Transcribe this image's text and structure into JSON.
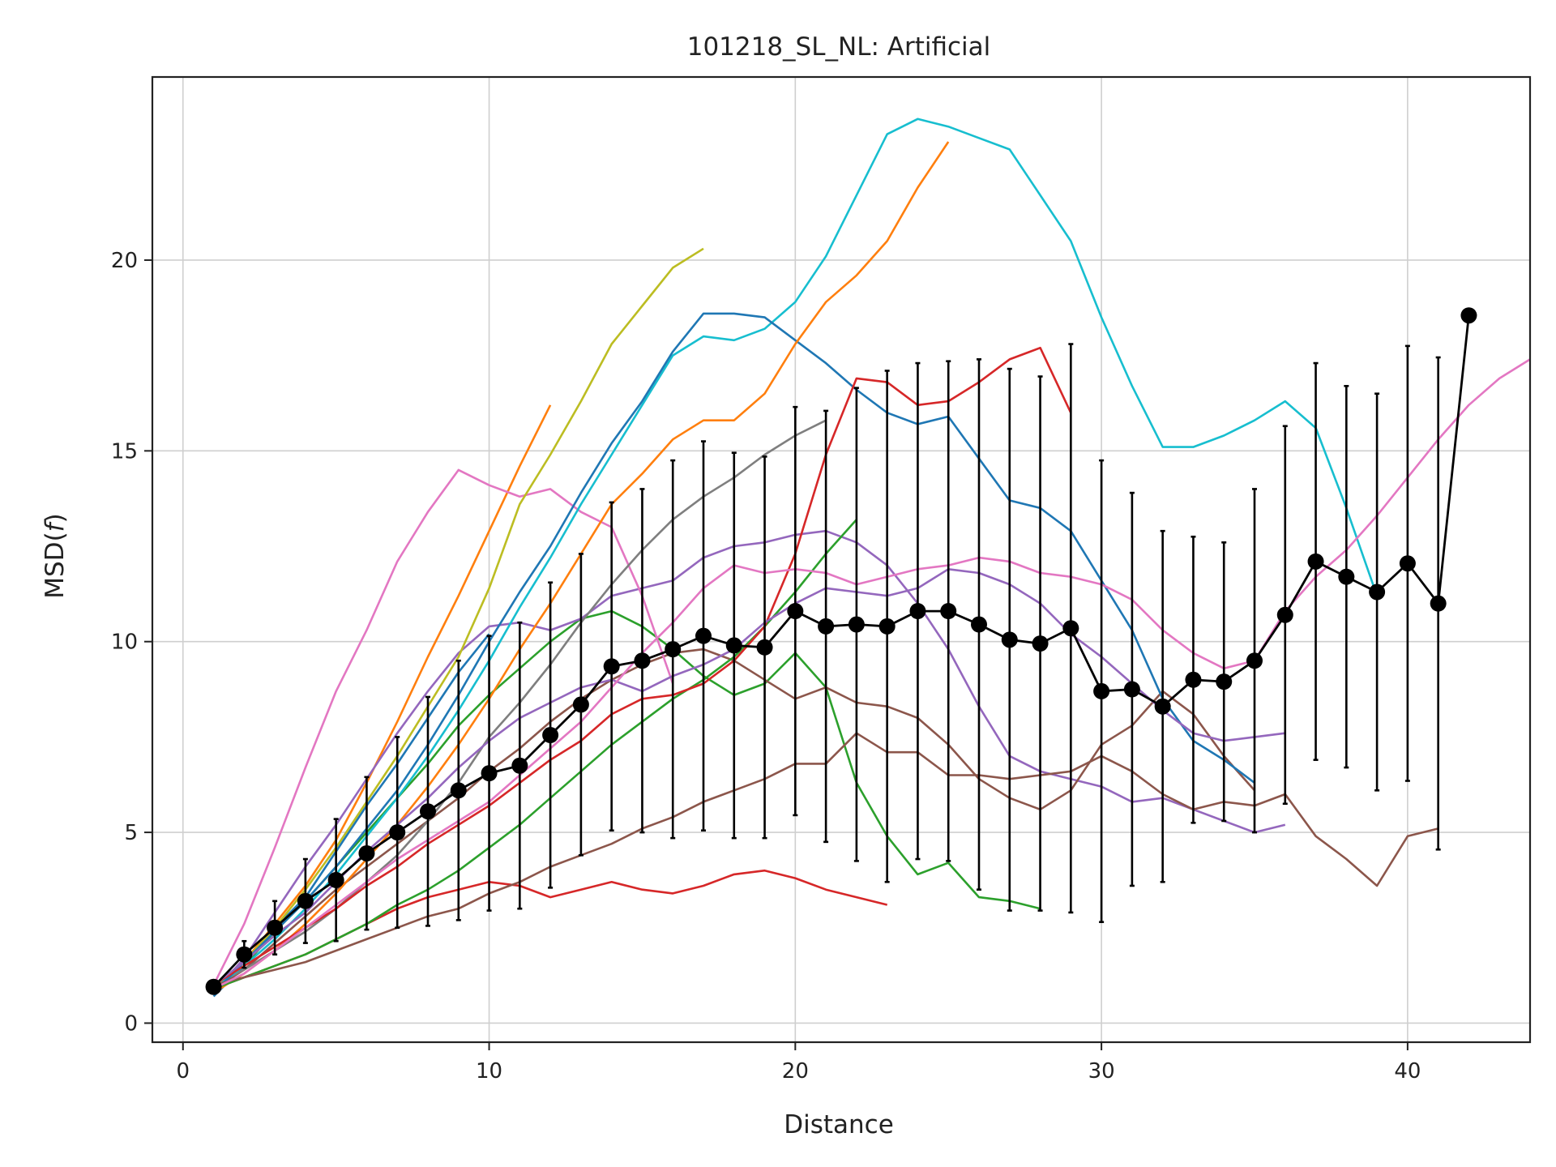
{
  "chart_data": {
    "type": "line",
    "title": "101218_SL_NL: Artificial",
    "xlabel": "Distance",
    "ylabel": "MSD(",
    "ylabel_italic": "f",
    "ylabel_close": ")",
    "xlim": [
      -1,
      44
    ],
    "ylim": [
      -0.5,
      24.8
    ],
    "xticks": [
      0,
      10,
      20,
      30,
      40
    ],
    "yticks": [
      0,
      5,
      10,
      15,
      20
    ],
    "grid": true,
    "palette": [
      "#1f77b4",
      "#ff7f0e",
      "#2ca02c",
      "#d62728",
      "#9467bd",
      "#8c564b",
      "#e377c2",
      "#7f7f7f",
      "#bcbd22",
      "#17becf"
    ],
    "mean": {
      "x": [
        1,
        2,
        3,
        4,
        5,
        6,
        7,
        8,
        9,
        10,
        11,
        12,
        13,
        14,
        15,
        16,
        17,
        18,
        19,
        20,
        21,
        22,
        23,
        24,
        25,
        26,
        27,
        28,
        29,
        30,
        31,
        32,
        33,
        34,
        35,
        36,
        37,
        38,
        39,
        40,
        41,
        42
      ],
      "y": [
        0.95,
        1.8,
        2.5,
        3.2,
        3.75,
        4.45,
        5.0,
        5.55,
        6.1,
        6.55,
        6.75,
        7.55,
        8.35,
        9.35,
        9.5,
        9.8,
        10.15,
        9.9,
        9.85,
        10.8,
        10.4,
        10.45,
        10.4,
        10.8,
        10.8,
        10.45,
        10.05,
        9.95,
        10.35,
        8.7,
        8.75,
        8.3,
        9.0,
        8.95,
        9.5,
        10.7,
        12.1,
        11.7,
        11.3,
        12.05,
        11.0,
        18.55
      ],
      "err": [
        0.0,
        0.35,
        0.7,
        1.1,
        1.6,
        2.0,
        2.5,
        3.0,
        3.4,
        3.6,
        3.75,
        4.0,
        3.95,
        4.3,
        4.5,
        4.95,
        5.1,
        5.05,
        5.0,
        5.35,
        5.65,
        6.2,
        6.7,
        6.5,
        6.55,
        6.95,
        7.1,
        7.0,
        7.45,
        6.05,
        5.15,
        4.6,
        3.75,
        3.65,
        4.5,
        4.95,
        5.2,
        5.0,
        5.2,
        5.7,
        6.45,
        0.0
      ]
    },
    "series": [
      {
        "values": [
          0.7,
          1.5,
          2.5,
          3.3,
          4.5,
          5.7,
          6.8,
          8.0,
          9.2,
          10.2
        ]
      },
      {
        "values": [
          0.8,
          1.6,
          2.6,
          3.6,
          4.8,
          6.3,
          7.9,
          9.6,
          11.2,
          12.9,
          14.6,
          16.2
        ]
      },
      {
        "values": [
          0.9,
          1.5,
          2.4,
          3.2,
          4.1,
          5.0,
          5.9,
          6.8,
          7.8,
          8.6,
          9.3,
          10.0,
          10.6,
          10.8,
          10.4,
          9.8,
          9.1,
          8.6,
          8.9,
          9.7,
          8.8,
          6.3,
          4.9,
          3.9,
          4.2,
          3.3,
          3.2,
          3.0
        ]
      },
      {
        "values": [
          0.9,
          1.2,
          1.5,
          1.8,
          2.2,
          2.6,
          3.0,
          3.3,
          3.5,
          3.7,
          3.6,
          3.3,
          3.5,
          3.7,
          3.5,
          3.4,
          3.6,
          3.9,
          4.0,
          3.8,
          3.5,
          3.3,
          3.1
        ]
      },
      {
        "values": [
          0.8,
          1.7,
          2.9,
          4.1,
          5.2,
          6.4,
          7.6,
          8.7,
          9.7,
          10.4,
          10.5,
          10.3,
          10.6,
          11.2,
          11.4,
          11.6,
          12.2,
          12.5,
          12.6,
          12.8,
          12.9,
          12.6,
          12.0,
          11.0,
          9.8,
          8.3,
          7.0,
          6.6,
          6.4,
          6.2,
          5.8,
          5.9,
          5.6,
          5.3,
          5.0,
          5.2
        ]
      },
      {
        "values": [
          0.9,
          1.4,
          2.1,
          2.8,
          3.5,
          4.1,
          4.7,
          5.3,
          5.9,
          6.6,
          7.2,
          7.9,
          8.5,
          9.0,
          9.4,
          9.7,
          9.8,
          9.5,
          9.0,
          8.5,
          8.8,
          8.4,
          8.3,
          8.0,
          7.3,
          6.4,
          5.9,
          5.6,
          6.1,
          7.3,
          7.8,
          8.7,
          8.1,
          7.0,
          6.1
        ]
      },
      {
        "values": [
          1.0,
          2.6,
          4.6,
          6.7,
          8.7,
          10.3,
          12.1,
          13.4,
          14.5,
          14.1,
          13.8,
          14.0,
          13.4,
          13.0,
          11.2,
          8.9
        ]
      },
      {
        "values": [
          1.0,
          1.4,
          1.9,
          2.4,
          3.0,
          3.7,
          4.4,
          5.3,
          6.3,
          7.5,
          8.4,
          9.4,
          10.5,
          11.5,
          12.4,
          13.2,
          13.8,
          14.3,
          14.9,
          15.4,
          15.8
        ]
      },
      {
        "values": [
          0.9,
          1.6,
          2.5,
          3.5,
          4.6,
          5.8,
          7.0,
          8.3,
          9.6,
          11.4,
          13.6,
          14.9,
          16.3,
          17.8,
          18.8,
          19.8,
          20.3
        ]
      },
      {
        "values": [
          0.9,
          1.5,
          2.2,
          3.0,
          3.9,
          4.9,
          5.9,
          7.0,
          8.2,
          9.5,
          10.9,
          12.2,
          13.6,
          14.9,
          16.2,
          17.5,
          18.0,
          17.9,
          18.2,
          18.9,
          20.1,
          21.7,
          23.3,
          23.7,
          23.5,
          23.2,
          22.9,
          21.7,
          20.5,
          18.5,
          16.7,
          15.1,
          15.1,
          15.4,
          15.8,
          16.3,
          15.6,
          13.5,
          11.2
        ]
      },
      {
        "values": [
          0.8,
          1.6,
          2.4,
          3.2,
          4.1,
          5.1,
          6.1,
          7.3,
          8.6,
          10.0,
          11.3,
          12.5,
          13.9,
          15.2,
          16.3,
          17.6,
          18.6,
          18.6,
          18.5,
          17.9,
          17.3,
          16.6,
          16.0,
          15.7,
          15.9,
          14.8,
          13.7,
          13.5,
          12.9,
          11.6,
          10.3,
          8.5,
          7.4,
          6.9,
          6.3
        ]
      },
      {
        "values": [
          0.8,
          1.3,
          1.9,
          2.6,
          3.4,
          4.3,
          5.2,
          6.2,
          7.3,
          8.5,
          9.8,
          11.0,
          12.3,
          13.6,
          14.4,
          15.3,
          15.8,
          15.8,
          16.5,
          17.8,
          18.9,
          19.6,
          20.5,
          21.9,
          23.1
        ]
      },
      {
        "values": [
          0.9,
          1.2,
          1.5,
          1.8,
          2.2,
          2.6,
          3.1,
          3.5,
          4.0,
          4.6,
          5.2,
          5.9,
          6.6,
          7.3,
          7.9,
          8.5,
          9.0,
          9.6,
          10.4,
          11.3,
          12.3,
          13.2
        ]
      },
      {
        "values": [
          1.0,
          1.5,
          2.0,
          2.5,
          3.0,
          3.6,
          4.1,
          4.7,
          5.2,
          5.7,
          6.3,
          6.9,
          7.4,
          8.1,
          8.5,
          8.6,
          8.9,
          9.5,
          10.4,
          12.3,
          14.9,
          16.9,
          16.8,
          16.2,
          16.3,
          16.8,
          17.4,
          17.7,
          16.0
        ]
      },
      {
        "values": [
          1.0,
          1.6,
          2.3,
          2.9,
          3.7,
          4.5,
          5.2,
          5.9,
          6.7,
          7.4,
          8.0,
          8.4,
          8.8,
          9.0,
          8.7,
          9.1,
          9.4,
          9.8,
          10.5,
          11.0,
          11.4,
          11.3,
          11.2,
          11.4,
          11.9,
          11.8,
          11.5,
          11.0,
          10.2,
          9.6,
          8.9,
          8.2,
          7.6,
          7.4,
          7.5,
          7.6
        ]
      },
      {
        "values": [
          1.0,
          1.2,
          1.4,
          1.6,
          1.9,
          2.2,
          2.5,
          2.8,
          3.0,
          3.4,
          3.7,
          4.1,
          4.4,
          4.7,
          5.1,
          5.4,
          5.8,
          6.1,
          6.4,
          6.8,
          6.8,
          7.6,
          7.1,
          7.1,
          6.5,
          6.5,
          6.4,
          6.5,
          6.6,
          7.0,
          6.6,
          6.0,
          5.6,
          5.8,
          5.7,
          6.0,
          4.9,
          4.3,
          3.6,
          4.9,
          5.1
        ]
      },
      {
        "values": [
          0.9,
          1.3,
          1.9,
          2.5,
          3.1,
          3.7,
          4.3,
          4.8,
          5.3,
          5.8,
          6.5,
          7.2,
          7.9,
          8.8,
          9.7,
          10.5,
          11.4,
          12.0,
          11.8,
          11.9,
          11.8,
          11.5,
          11.7,
          11.9,
          12.0,
          12.2,
          12.1,
          11.8,
          11.7,
          11.5,
          11.1,
          10.3,
          9.7,
          9.3,
          9.5,
          10.8,
          11.7,
          12.4,
          13.3,
          14.3,
          15.3,
          16.2,
          16.9,
          17.4
        ]
      }
    ]
  }
}
